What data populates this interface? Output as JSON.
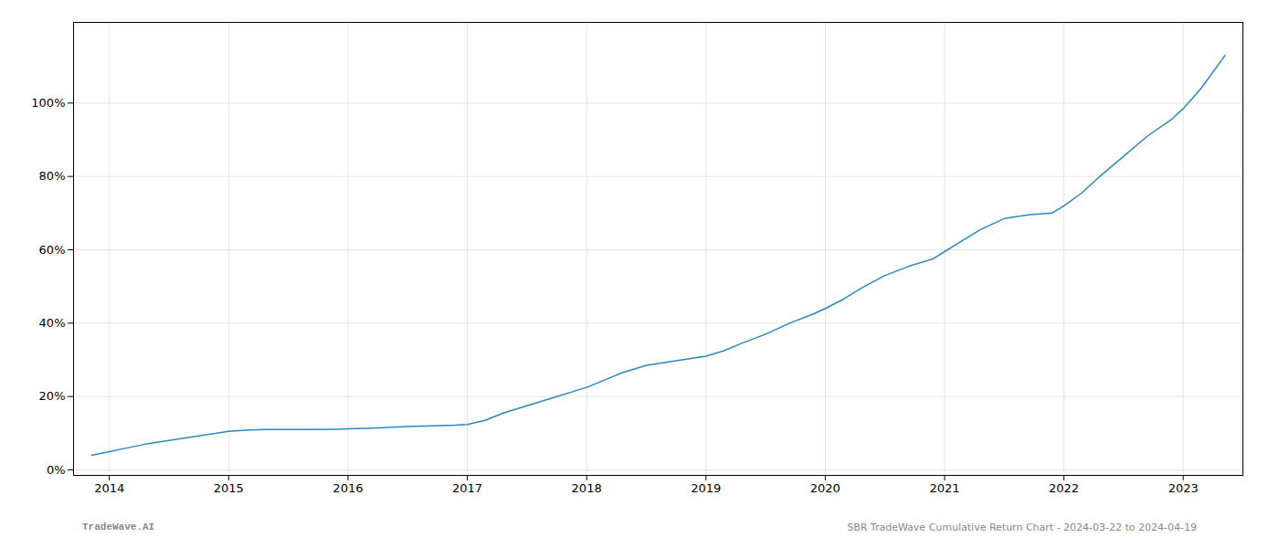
{
  "chart_data": {
    "type": "line",
    "x": [
      2013.85,
      2014.0,
      2014.15,
      2014.3,
      2014.5,
      2014.7,
      2014.9,
      2015.0,
      2015.15,
      2015.3,
      2015.5,
      2015.7,
      2015.9,
      2016.0,
      2016.15,
      2016.3,
      2016.5,
      2016.7,
      2016.9,
      2017.0,
      2017.15,
      2017.3,
      2017.5,
      2017.7,
      2017.9,
      2018.0,
      2018.15,
      2018.3,
      2018.5,
      2018.7,
      2018.9,
      2019.0,
      2019.15,
      2019.3,
      2019.5,
      2019.7,
      2019.9,
      2020.0,
      2020.15,
      2020.3,
      2020.5,
      2020.7,
      2020.9,
      2021.0,
      2021.15,
      2021.3,
      2021.5,
      2021.7,
      2021.9,
      2022.0,
      2022.15,
      2022.3,
      2022.5,
      2022.7,
      2022.9,
      2023.0,
      2023.15,
      2023.35
    ],
    "values": [
      0.04,
      0.05,
      0.06,
      0.07,
      0.08,
      0.09,
      0.1,
      0.105,
      0.108,
      0.11,
      0.11,
      0.11,
      0.111,
      0.112,
      0.113,
      0.115,
      0.118,
      0.12,
      0.122,
      0.124,
      0.135,
      0.155,
      0.175,
      0.195,
      0.215,
      0.225,
      0.245,
      0.265,
      0.285,
      0.295,
      0.305,
      0.31,
      0.325,
      0.345,
      0.37,
      0.4,
      0.425,
      0.44,
      0.465,
      0.495,
      0.53,
      0.555,
      0.575,
      0.595,
      0.625,
      0.655,
      0.685,
      0.695,
      0.7,
      0.72,
      0.755,
      0.8,
      0.855,
      0.91,
      0.955,
      0.985,
      1.04,
      1.13
    ],
    "color": "#2e86c1",
    "xlim": [
      2013.7,
      2023.5
    ],
    "xticks": [
      2014,
      2015,
      2016,
      2017,
      2018,
      2019,
      2020,
      2021,
      2022,
      2023
    ],
    "ylim": [
      -0.015,
      1.22
    ],
    "yticks": [
      {
        "value": 0.0,
        "label": "0%"
      },
      {
        "value": 0.2,
        "label": "20%"
      },
      {
        "value": 0.4,
        "label": "40%"
      },
      {
        "value": 0.6,
        "label": "60%"
      },
      {
        "value": 0.8,
        "label": "80%"
      },
      {
        "value": 1.0,
        "label": "100%"
      }
    ],
    "grid": true,
    "annotations": [
      "TradeWave.AI",
      "SBR TradeWave Cumulative Return Chart - 2024-03-22 to 2024-04-19"
    ]
  }
}
